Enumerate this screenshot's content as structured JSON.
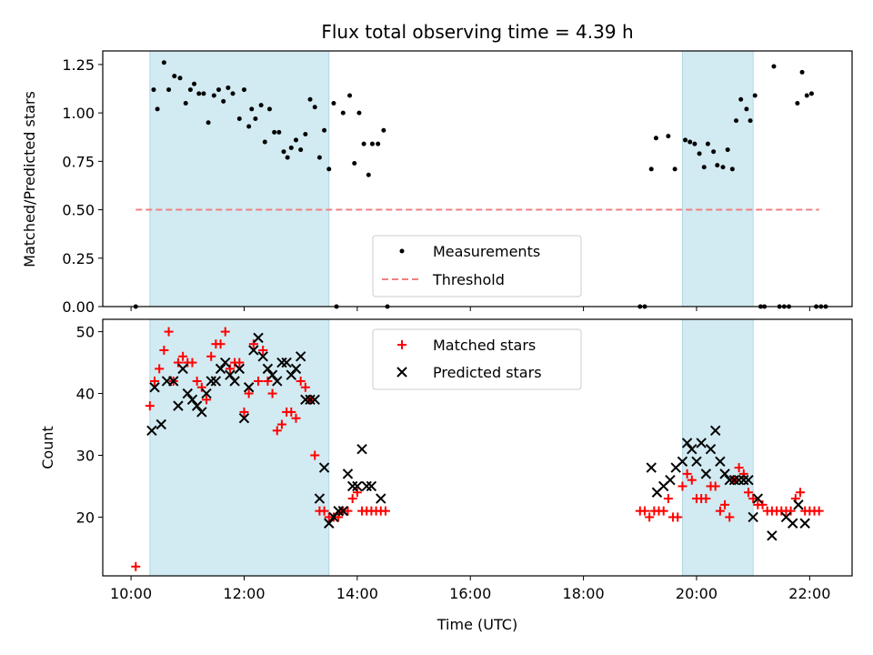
{
  "chart_data": [
    {
      "type": "scatter",
      "title": "Flux total observing time = 4.39 h",
      "xlabel": "",
      "ylabel": "Matched/Predicted stars",
      "ylim": [
        0,
        1.32
      ],
      "yticks": [
        "0.00",
        "0.25",
        "0.50",
        "0.75",
        "1.00",
        "1.25"
      ],
      "ytick_values": [
        0,
        0.25,
        0.5,
        0.75,
        1.0,
        1.25
      ],
      "shaded_regions": [
        [
          "10:20",
          "13:30"
        ],
        [
          "19:45",
          "21:00"
        ]
      ],
      "threshold": {
        "name": "Threshold",
        "value": 0.5,
        "x_range": [
          "10:05",
          "22:10"
        ],
        "color": "#f08080"
      },
      "legend": {
        "placement": "lower-center",
        "entries": [
          "Measurements",
          "Threshold"
        ]
      },
      "series": [
        {
          "name": "Measurements",
          "color": "#000000",
          "marker": "dot",
          "points": [
            [
              "10:05",
              0
            ],
            [
              "10:24",
              1.12
            ],
            [
              "10:28",
              1.02
            ],
            [
              "10:35",
              1.26
            ],
            [
              "10:40",
              1.12
            ],
            [
              "10:46",
              1.19
            ],
            [
              "10:52",
              1.18
            ],
            [
              "10:58",
              1.05
            ],
            [
              "11:03",
              1.12
            ],
            [
              "11:07",
              1.15
            ],
            [
              "11:12",
              1.1
            ],
            [
              "11:17",
              1.1
            ],
            [
              "11:22",
              0.95
            ],
            [
              "11:28",
              1.09
            ],
            [
              "11:33",
              1.12
            ],
            [
              "11:38",
              1.06
            ],
            [
              "11:43",
              1.13
            ],
            [
              "11:48",
              1.1
            ],
            [
              "11:55",
              0.97
            ],
            [
              "12:00",
              1.12
            ],
            [
              "12:05",
              0.93
            ],
            [
              "12:08",
              1.02
            ],
            [
              "12:12",
              0.97
            ],
            [
              "12:18",
              1.04
            ],
            [
              "12:22",
              0.85
            ],
            [
              "12:27",
              1.02
            ],
            [
              "12:32",
              0.9
            ],
            [
              "12:37",
              0.9
            ],
            [
              "12:42",
              0.8
            ],
            [
              "12:46",
              0.77
            ],
            [
              "12:50",
              0.82
            ],
            [
              "12:55",
              0.86
            ],
            [
              "13:00",
              0.81
            ],
            [
              "13:05",
              0.89
            ],
            [
              "13:10",
              1.07
            ],
            [
              "13:15",
              1.03
            ],
            [
              "13:20",
              0.77
            ],
            [
              "13:25",
              0.91
            ],
            [
              "13:30",
              0.71
            ],
            [
              "13:35",
              1.05
            ],
            [
              "13:38",
              0
            ],
            [
              "13:45",
              1.0
            ],
            [
              "13:52",
              1.09
            ],
            [
              "13:57",
              0.74
            ],
            [
              "14:02",
              1.0
            ],
            [
              "14:07",
              0.84
            ],
            [
              "14:12",
              0.68
            ],
            [
              "14:16",
              0.84
            ],
            [
              "14:22",
              0.84
            ],
            [
              "14:28",
              0.91
            ],
            [
              "14:32",
              0
            ],
            [
              "19:00",
              0
            ],
            [
              "19:05",
              0
            ],
            [
              "19:12",
              0.71
            ],
            [
              "19:17",
              0.87
            ],
            [
              "19:30",
              0.88
            ],
            [
              "19:37",
              0.71
            ],
            [
              "19:48",
              0.86
            ],
            [
              "19:53",
              0.85
            ],
            [
              "19:58",
              0.84
            ],
            [
              "20:03",
              0.79
            ],
            [
              "20:08",
              0.72
            ],
            [
              "20:12",
              0.84
            ],
            [
              "20:18",
              0.8
            ],
            [
              "20:22",
              0.73
            ],
            [
              "20:28",
              0.72
            ],
            [
              "20:33",
              0.81
            ],
            [
              "20:38",
              0.71
            ],
            [
              "20:42",
              0.96
            ],
            [
              "20:47",
              1.07
            ],
            [
              "20:53",
              1.02
            ],
            [
              "20:57",
              0.96
            ],
            [
              "21:02",
              1.09
            ],
            [
              "21:08",
              0
            ],
            [
              "21:12",
              0
            ],
            [
              "21:22",
              1.24
            ],
            [
              "21:28",
              0
            ],
            [
              "21:33",
              0
            ],
            [
              "21:38",
              0
            ],
            [
              "21:47",
              1.05
            ],
            [
              "21:52",
              1.21
            ],
            [
              "21:57",
              1.09
            ],
            [
              "22:02",
              1.1
            ],
            [
              "22:07",
              0
            ],
            [
              "22:12",
              0
            ],
            [
              "22:17",
              0
            ]
          ]
        }
      ]
    },
    {
      "type": "scatter",
      "title": "",
      "xlabel": "Time (UTC)",
      "ylabel": "Count",
      "ylim": [
        10.5,
        52
      ],
      "yticks": [
        "20",
        "30",
        "40",
        "50"
      ],
      "ytick_values": [
        20,
        30,
        40,
        50
      ],
      "xlim": [
        "09:30",
        "22:45"
      ],
      "xticks": [
        "10:00",
        "12:00",
        "14:00",
        "16:00",
        "18:00",
        "20:00",
        "22:00"
      ],
      "shaded_regions": [
        [
          "10:20",
          "13:30"
        ],
        [
          "19:45",
          "21:00"
        ]
      ],
      "shade_color": "#add8e6",
      "legend": {
        "placement": "upper-center",
        "entries": [
          "Matched stars",
          "Predicted stars"
        ]
      },
      "series": [
        {
          "name": "Matched stars",
          "color": "#ff0000",
          "marker": "plus",
          "points": [
            [
              "10:05",
              12
            ],
            [
              "10:20",
              38
            ],
            [
              "10:25",
              42
            ],
            [
              "10:30",
              44
            ],
            [
              "10:35",
              47
            ],
            [
              "10:40",
              50
            ],
            [
              "10:45",
              42
            ],
            [
              "10:50",
              45
            ],
            [
              "10:55",
              46
            ],
            [
              "11:00",
              45
            ],
            [
              "11:05",
              45
            ],
            [
              "11:10",
              42
            ],
            [
              "11:15",
              41
            ],
            [
              "11:20",
              39
            ],
            [
              "11:25",
              46
            ],
            [
              "11:30",
              48
            ],
            [
              "11:35",
              48
            ],
            [
              "11:40",
              50
            ],
            [
              "11:45",
              44
            ],
            [
              "11:50",
              45
            ],
            [
              "11:55",
              45
            ],
            [
              "12:00",
              37
            ],
            [
              "12:05",
              40
            ],
            [
              "12:10",
              48
            ],
            [
              "12:15",
              42
            ],
            [
              "12:20",
              47
            ],
            [
              "12:25",
              42
            ],
            [
              "12:30",
              40
            ],
            [
              "12:35",
              34
            ],
            [
              "12:40",
              35
            ],
            [
              "12:45",
              37
            ],
            [
              "12:50",
              37
            ],
            [
              "12:55",
              36
            ],
            [
              "13:00",
              42
            ],
            [
              "13:05",
              41
            ],
            [
              "13:10",
              39
            ],
            [
              "13:15",
              30
            ],
            [
              "13:20",
              21
            ],
            [
              "13:25",
              21
            ],
            [
              "13:30",
              20
            ],
            [
              "13:35",
              20
            ],
            [
              "13:40",
              20
            ],
            [
              "13:45",
              21
            ],
            [
              "13:50",
              21
            ],
            [
              "13:55",
              23
            ],
            [
              "14:00",
              24
            ],
            [
              "14:05",
              21
            ],
            [
              "14:10",
              21
            ],
            [
              "14:15",
              21
            ],
            [
              "14:20",
              21
            ],
            [
              "14:25",
              21
            ],
            [
              "14:30",
              21
            ],
            [
              "19:00",
              21
            ],
            [
              "19:05",
              21
            ],
            [
              "19:10",
              20
            ],
            [
              "19:15",
              21
            ],
            [
              "19:20",
              21
            ],
            [
              "19:25",
              21
            ],
            [
              "19:30",
              23
            ],
            [
              "19:35",
              20
            ],
            [
              "19:40",
              20
            ],
            [
              "19:45",
              25
            ],
            [
              "19:50",
              27
            ],
            [
              "19:55",
              26
            ],
            [
              "20:00",
              23
            ],
            [
              "20:05",
              23
            ],
            [
              "20:10",
              23
            ],
            [
              "20:15",
              25
            ],
            [
              "20:20",
              25
            ],
            [
              "20:25",
              21
            ],
            [
              "20:30",
              22
            ],
            [
              "20:35",
              20
            ],
            [
              "20:40",
              26
            ],
            [
              "20:45",
              28
            ],
            [
              "20:50",
              27
            ],
            [
              "20:55",
              24
            ],
            [
              "21:00",
              23
            ],
            [
              "21:05",
              22
            ],
            [
              "21:10",
              22
            ],
            [
              "21:15",
              21
            ],
            [
              "21:20",
              21
            ],
            [
              "21:25",
              21
            ],
            [
              "21:30",
              21
            ],
            [
              "21:35",
              21
            ],
            [
              "21:40",
              21
            ],
            [
              "21:45",
              23
            ],
            [
              "21:50",
              24
            ],
            [
              "21:55",
              21
            ],
            [
              "22:00",
              21
            ],
            [
              "22:05",
              21
            ],
            [
              "22:10",
              21
            ]
          ]
        },
        {
          "name": "Predicted stars",
          "color": "#000000",
          "marker": "x",
          "points": [
            [
              "10:22",
              34
            ],
            [
              "10:25",
              41
            ],
            [
              "10:32",
              35
            ],
            [
              "10:38",
              42
            ],
            [
              "10:45",
              42
            ],
            [
              "10:50",
              38
            ],
            [
              "10:55",
              44
            ],
            [
              "11:00",
              40
            ],
            [
              "11:05",
              39
            ],
            [
              "11:10",
              38
            ],
            [
              "11:15",
              37
            ],
            [
              "11:20",
              40
            ],
            [
              "11:25",
              42
            ],
            [
              "11:30",
              42
            ],
            [
              "11:35",
              44
            ],
            [
              "11:40",
              45
            ],
            [
              "11:45",
              43
            ],
            [
              "11:50",
              42
            ],
            [
              "11:55",
              44
            ],
            [
              "12:00",
              36
            ],
            [
              "12:05",
              41
            ],
            [
              "12:10",
              47
            ],
            [
              "12:15",
              49
            ],
            [
              "12:20",
              46
            ],
            [
              "12:25",
              44
            ],
            [
              "12:30",
              43
            ],
            [
              "12:35",
              42
            ],
            [
              "12:40",
              45
            ],
            [
              "12:45",
              45
            ],
            [
              "12:50",
              43
            ],
            [
              "12:55",
              44
            ],
            [
              "13:00",
              46
            ],
            [
              "13:05",
              39
            ],
            [
              "13:10",
              39
            ],
            [
              "13:15",
              39
            ],
            [
              "13:20",
              23
            ],
            [
              "13:25",
              28
            ],
            [
              "13:30",
              19
            ],
            [
              "13:35",
              20
            ],
            [
              "13:40",
              21
            ],
            [
              "13:45",
              21
            ],
            [
              "13:50",
              27
            ],
            [
              "13:55",
              25
            ],
            [
              "14:00",
              25
            ],
            [
              "14:05",
              31
            ],
            [
              "14:10",
              25
            ],
            [
              "14:15",
              25
            ],
            [
              "14:25",
              23
            ],
            [
              "19:12",
              28
            ],
            [
              "19:18",
              24
            ],
            [
              "19:25",
              25
            ],
            [
              "19:32",
              26
            ],
            [
              "19:38",
              28
            ],
            [
              "19:45",
              29
            ],
            [
              "19:50",
              32
            ],
            [
              "19:55",
              31
            ],
            [
              "20:00",
              29
            ],
            [
              "20:05",
              32
            ],
            [
              "20:10",
              27
            ],
            [
              "20:15",
              31
            ],
            [
              "20:20",
              34
            ],
            [
              "20:25",
              29
            ],
            [
              "20:30",
              27
            ],
            [
              "20:35",
              26
            ],
            [
              "20:40",
              26
            ],
            [
              "20:45",
              26
            ],
            [
              "20:50",
              26
            ],
            [
              "20:55",
              26
            ],
            [
              "21:00",
              20
            ],
            [
              "21:05",
              23
            ],
            [
              "21:20",
              17
            ],
            [
              "21:35",
              20
            ],
            [
              "21:42",
              19
            ],
            [
              "21:48",
              22
            ],
            [
              "21:55",
              19
            ]
          ]
        }
      ]
    }
  ]
}
